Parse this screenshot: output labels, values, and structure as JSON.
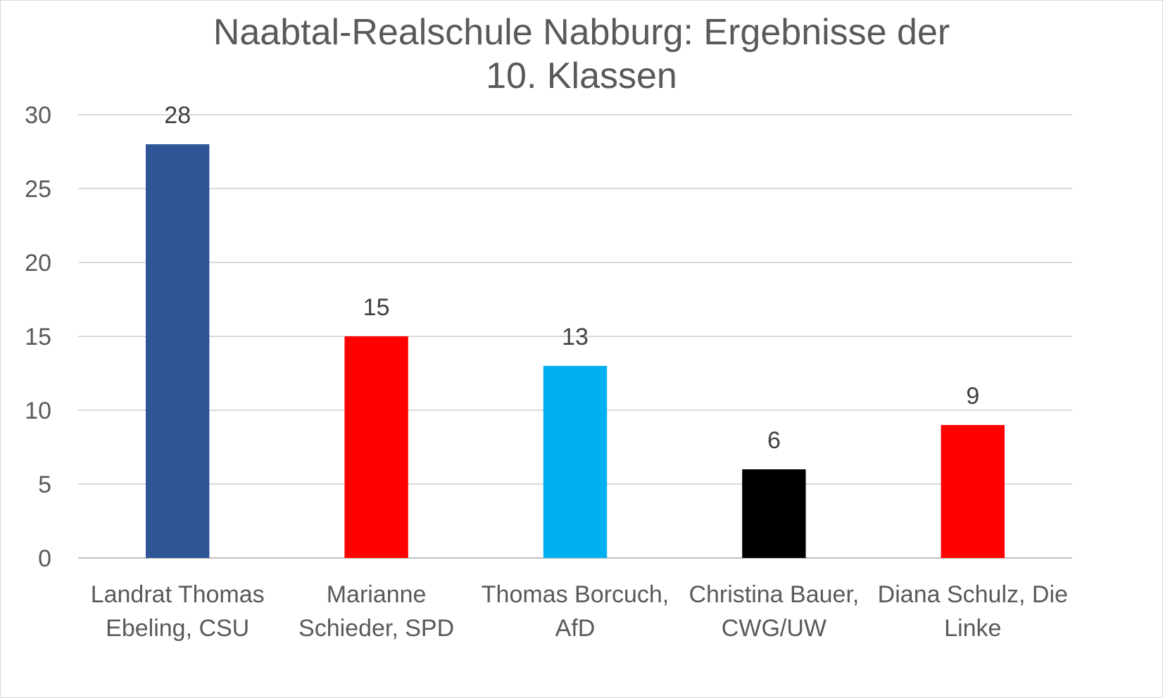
{
  "chart_data": {
    "type": "bar",
    "title_lines": [
      "Naabtal-Realschule Nabburg: Ergebnisse der",
      "10. Klassen"
    ],
    "categories": [
      [
        "Landrat Thomas",
        "Ebeling, CSU"
      ],
      [
        "Marianne",
        "Schieder, SPD"
      ],
      [
        "Thomas Borcuch,",
        "AfD"
      ],
      [
        "Christina Bauer,",
        "CWG/UW"
      ],
      [
        "Diana Schulz, Die",
        "Linke"
      ]
    ],
    "values": [
      28,
      15,
      13,
      6,
      9
    ],
    "data_labels": [
      "28",
      "15",
      "13",
      "6",
      "9"
    ],
    "bar_colors": [
      "#2F5597",
      "#FF0000",
      "#00B0F0",
      "#000000",
      "#FF0000"
    ],
    "ylim": [
      0,
      30
    ],
    "yticks": [
      "0",
      "5",
      "10",
      "15",
      "20",
      "25",
      "30"
    ],
    "grid": true,
    "legend": "none"
  }
}
